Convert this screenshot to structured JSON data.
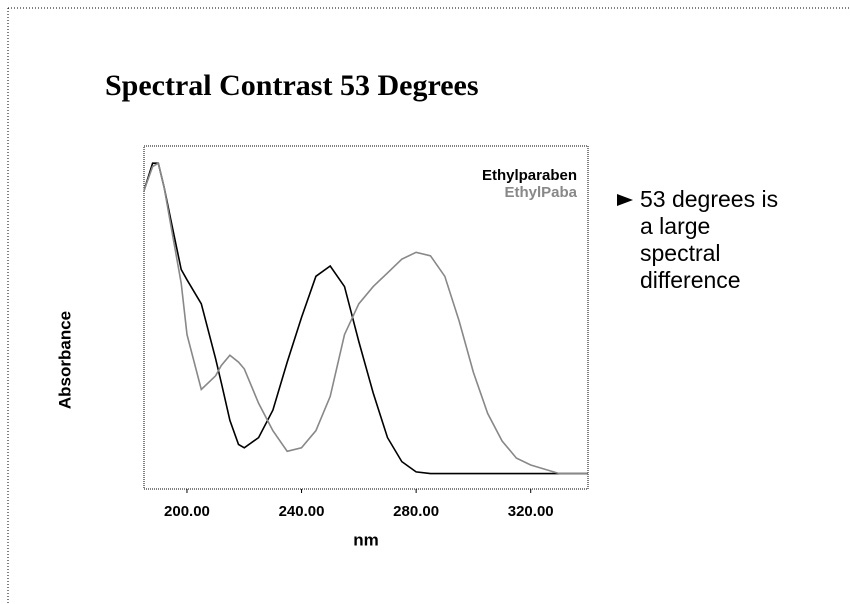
{
  "chart_data": {
    "type": "line",
    "title": "Spectral Contrast 53 Degrees",
    "x_label": "nm",
    "y_label": "Absorbance",
    "note": "53 degrees is a large spectral difference",
    "x": [
      185,
      188,
      190,
      192,
      195,
      198,
      200,
      205,
      210,
      212,
      215,
      218,
      220,
      225,
      230,
      235,
      240,
      245,
      250,
      255,
      260,
      265,
      270,
      275,
      280,
      285,
      290,
      295,
      300,
      305,
      310,
      315,
      320,
      330,
      340
    ],
    "series": [
      {
        "name": "Ethylparaben",
        "color": "#000000",
        "values": [
          0.87,
          0.95,
          0.95,
          0.88,
          0.76,
          0.64,
          0.61,
          0.54,
          0.38,
          0.31,
          0.2,
          0.13,
          0.12,
          0.15,
          0.23,
          0.37,
          0.5,
          0.62,
          0.65,
          0.59,
          0.43,
          0.28,
          0.15,
          0.08,
          0.05,
          0.045,
          0.045,
          0.045,
          0.045,
          0.045,
          0.045,
          0.045,
          0.045,
          0.045,
          0.045
        ]
      },
      {
        "name": "EthylPaba",
        "color": "#888888",
        "values": [
          0.87,
          0.94,
          0.95,
          0.88,
          0.74,
          0.6,
          0.45,
          0.29,
          0.33,
          0.36,
          0.39,
          0.37,
          0.35,
          0.25,
          0.17,
          0.11,
          0.12,
          0.17,
          0.27,
          0.45,
          0.54,
          0.59,
          0.63,
          0.67,
          0.69,
          0.68,
          0.62,
          0.49,
          0.34,
          0.22,
          0.14,
          0.09,
          0.07,
          0.045,
          0.045
        ]
      }
    ],
    "xlim": [
      185,
      340
    ],
    "xticks": [
      {
        "value": 200,
        "label": "200.00"
      },
      {
        "value": 240,
        "label": "240.00"
      },
      {
        "value": 280,
        "label": "280.00"
      },
      {
        "value": 320,
        "label": "320.00"
      }
    ],
    "ylim": [
      0,
      1
    ]
  }
}
